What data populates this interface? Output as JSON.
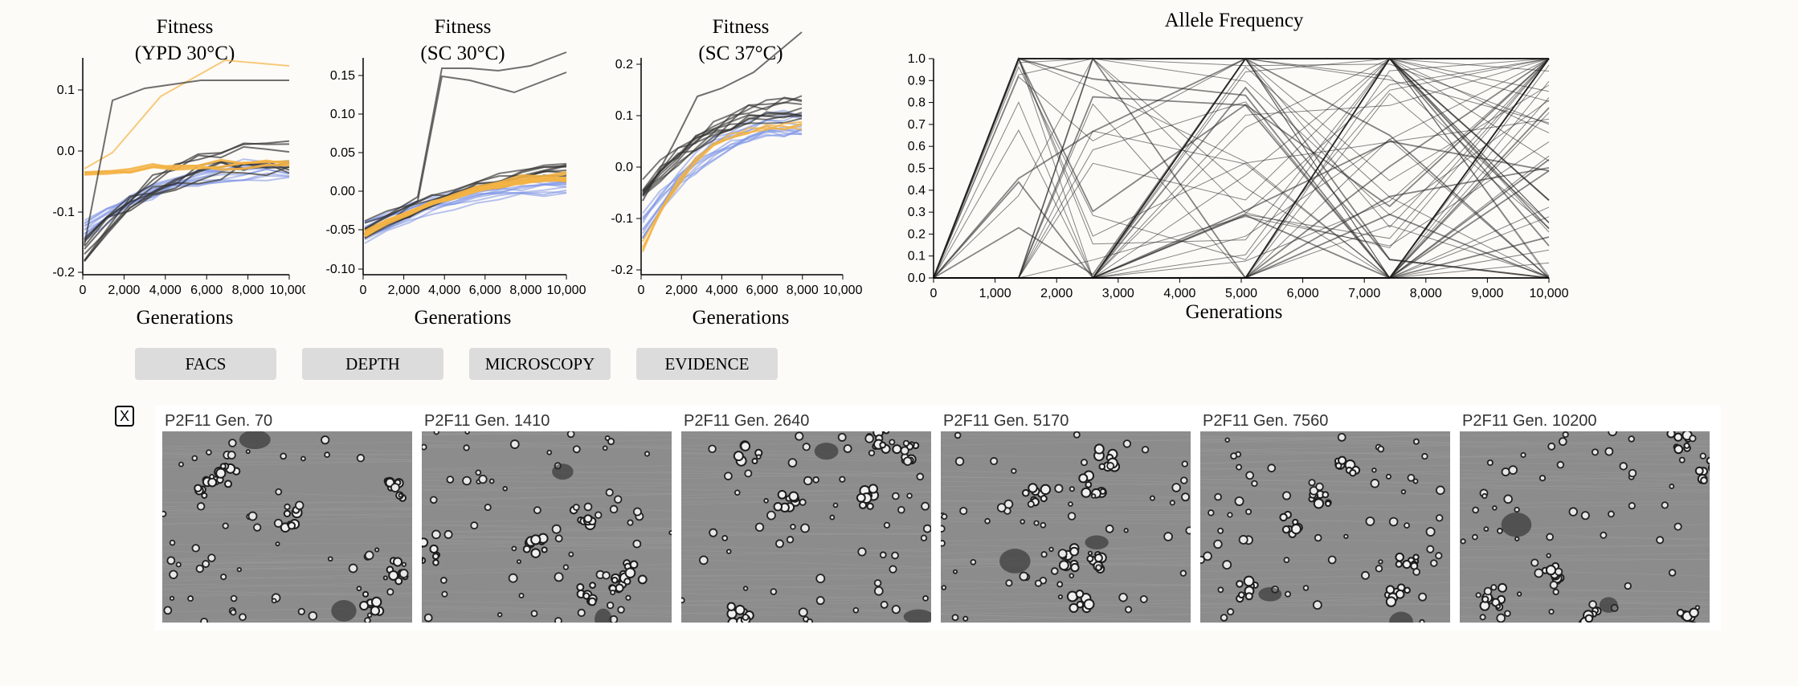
{
  "colors": {
    "background": "#fdfbf7",
    "button_bg": "#dcdcdc",
    "line_dark": "#333333",
    "line_blue": "#7b93e6",
    "line_orange": "#f3b345"
  },
  "fitness_panels": [
    {
      "title_line1": "Fitness",
      "title_line2": "(YPD 30°C)",
      "xlabel": "Generations",
      "x_ticks": [
        "0",
        "2,000",
        "4,000",
        "6,000",
        "8,000",
        "10,000"
      ],
      "y_ticks": [
        "0.1",
        "0.0",
        "-0.1",
        "-0.2"
      ]
    },
    {
      "title_line1": "Fitness",
      "title_line2": "(SC 30°C)",
      "xlabel": "Generations",
      "x_ticks": [
        "0",
        "2,000",
        "4,000",
        "6,000",
        "8,000",
        "10,000"
      ],
      "y_ticks": [
        "0.15",
        "0.10",
        "0.05",
        "0.00",
        "-0.05",
        "-0.10"
      ]
    },
    {
      "title_line1": "Fitness",
      "title_line2": "(SC 37°C)",
      "xlabel": "Generations",
      "x_ticks": [
        "0",
        "2,000",
        "4,000",
        "6,000",
        "8,000",
        "10,000"
      ],
      "y_ticks": [
        "0.2",
        "0.1",
        "0.0",
        "-0.1",
        "-0.2"
      ]
    }
  ],
  "allele_panel": {
    "title": "Allele Frequency",
    "xlabel": "Generations",
    "x_ticks": [
      "0",
      "1,000",
      "2,000",
      "3,000",
      "4,000",
      "5,000",
      "6,000",
      "7,000",
      "8,000",
      "9,000",
      "10,000"
    ],
    "y_ticks": [
      "1.0",
      "0.9",
      "0.8",
      "0.7",
      "0.6",
      "0.5",
      "0.4",
      "0.3",
      "0.2",
      "0.1",
      "0.0"
    ],
    "timepoints": [
      0,
      1410,
      2640,
      5170,
      7560,
      10200
    ]
  },
  "buttons": {
    "facs": "FACS",
    "depth": "DEPTH",
    "microscopy": "MICROSCOPY",
    "evidence": "EVIDENCE"
  },
  "close_label": "X",
  "micrographs": [
    {
      "label": "P2F11 Gen. 70"
    },
    {
      "label": "P2F11 Gen. 1410"
    },
    {
      "label": "P2F11 Gen. 2640"
    },
    {
      "label": "P2F11 Gen. 5170"
    },
    {
      "label": "P2F11 Gen. 7560"
    },
    {
      "label": "P2F11 Gen. 10200"
    }
  ]
}
